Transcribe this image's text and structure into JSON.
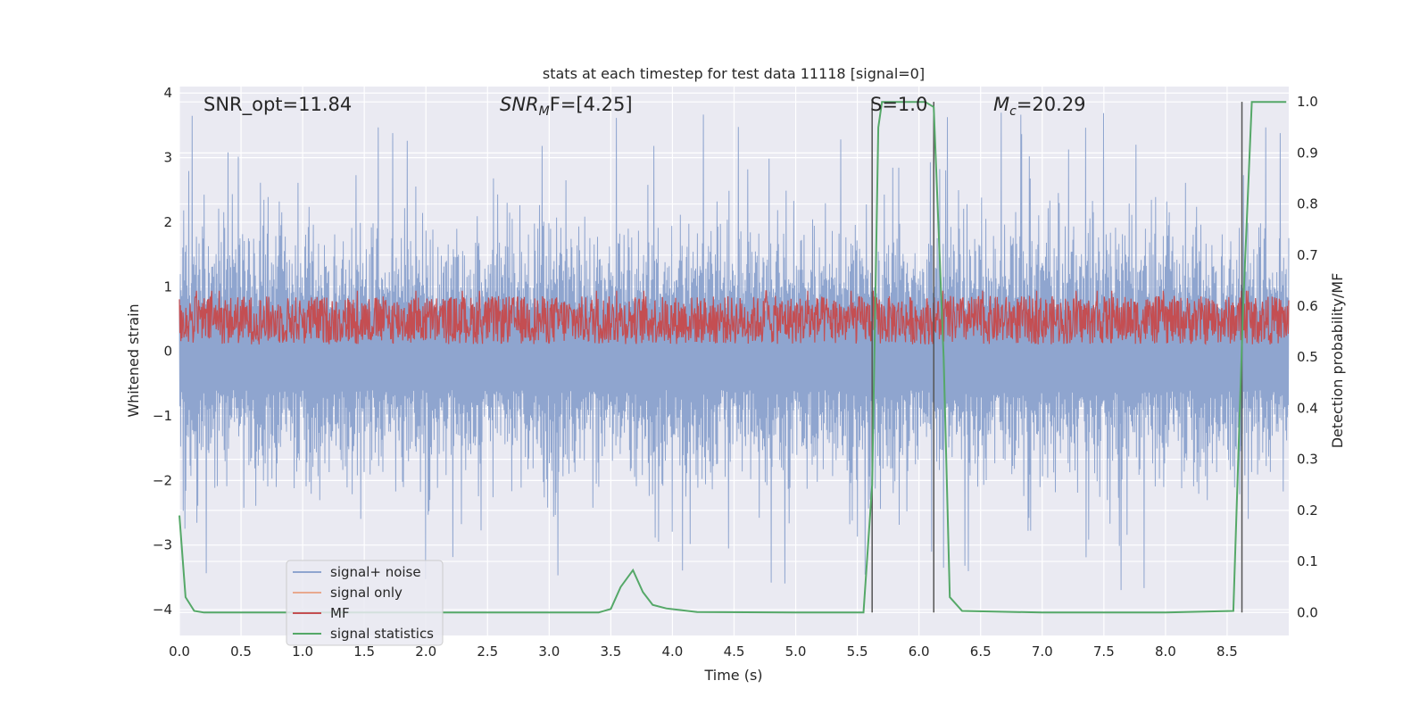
{
  "chart_data": {
    "type": "line",
    "title": "stats at each timestep for test data 11118 [signal=0]",
    "xlabel": "Time (s)",
    "ylabel_left": "Whitened strain",
    "ylabel_right": "Detection probability/MF",
    "xlim": [
      0.0,
      9.0
    ],
    "ylim_left": [
      -4.4,
      4.1
    ],
    "ylim_right": [
      -0.045,
      1.03
    ],
    "x_ticks": [
      "0.0",
      "0.5",
      "1.0",
      "1.5",
      "2.0",
      "2.5",
      "3.0",
      "3.5",
      "4.0",
      "4.5",
      "5.0",
      "5.5",
      "6.0",
      "6.5",
      "7.0",
      "7.5",
      "8.0",
      "8.5"
    ],
    "y_left_ticks": [
      "4",
      "3",
      "2",
      "1",
      "0",
      "−1",
      "−2",
      "−3",
      "−4"
    ],
    "y_right_ticks": [
      "1.0",
      "0.9",
      "0.8",
      "0.7",
      "0.6",
      "0.5",
      "0.4",
      "0.3",
      "0.2",
      "0.1",
      "0.0"
    ],
    "grid": true,
    "legend_position": "lower-left",
    "annotations": {
      "snr_opt": "SNR_opt=11.84",
      "snr_mf_main": "SNR",
      "snr_mf_sub": "M",
      "snr_mf_tail": "F=[4.25]",
      "s": "S=1.0",
      "mc_main": "M",
      "mc_sub": "c",
      "mc_tail": "=20.29"
    },
    "series": [
      {
        "name": "signal+ noise",
        "axis": "left",
        "color": "#8fa5cf",
        "description_of_shape": "dense noise band roughly between -2.2 and 2.6 with spikes up to about 3.8 and down to about -4.0",
        "envelope": {
          "low": -2.2,
          "high": 2.6,
          "spike_max": 3.8,
          "spike_min": -4.0
        }
      },
      {
        "name": "signal only",
        "axis": "left",
        "color": "#e8a98f",
        "x": [],
        "y": []
      },
      {
        "name": "MF",
        "axis": "right",
        "color": "#c44e52",
        "envelope": {
          "low": 0.525,
          "high": 0.62,
          "spike_max": 0.63
        }
      },
      {
        "name": "signal statistics",
        "axis": "right",
        "color": "#55a868",
        "x": [
          0.0,
          0.05,
          0.12,
          0.2,
          0.4,
          3.4,
          3.5,
          3.58,
          3.68,
          3.76,
          3.84,
          3.95,
          4.2,
          5.0,
          5.55,
          5.62,
          5.67,
          5.7,
          6.05,
          6.12,
          6.2,
          6.25,
          6.35,
          7.0,
          8.0,
          8.55,
          8.63,
          8.7,
          8.98
        ],
        "y": [
          0.19,
          0.03,
          0.003,
          0.0,
          0.0,
          0.0,
          0.007,
          0.05,
          0.083,
          0.04,
          0.015,
          0.008,
          0.001,
          0.0,
          0.0,
          0.25,
          0.95,
          1.0,
          1.0,
          0.99,
          0.5,
          0.03,
          0.003,
          0.0,
          0.0,
          0.003,
          0.6,
          1.0,
          1.0
        ]
      }
    ],
    "vertical_markers": {
      "color": "#555555",
      "x": [
        5.62,
        6.12,
        8.62
      ]
    }
  },
  "legend": {
    "items": [
      {
        "label": "signal+ noise",
        "color": "#8fa5cf"
      },
      {
        "label": "signal only",
        "color": "#e8a98f"
      },
      {
        "label": "MF",
        "color": "#c44e52"
      },
      {
        "label": "signal statistics",
        "color": "#55a868"
      }
    ]
  },
  "colors": {
    "plot_background": "#eaeaf2",
    "grid": "#ffffff"
  }
}
